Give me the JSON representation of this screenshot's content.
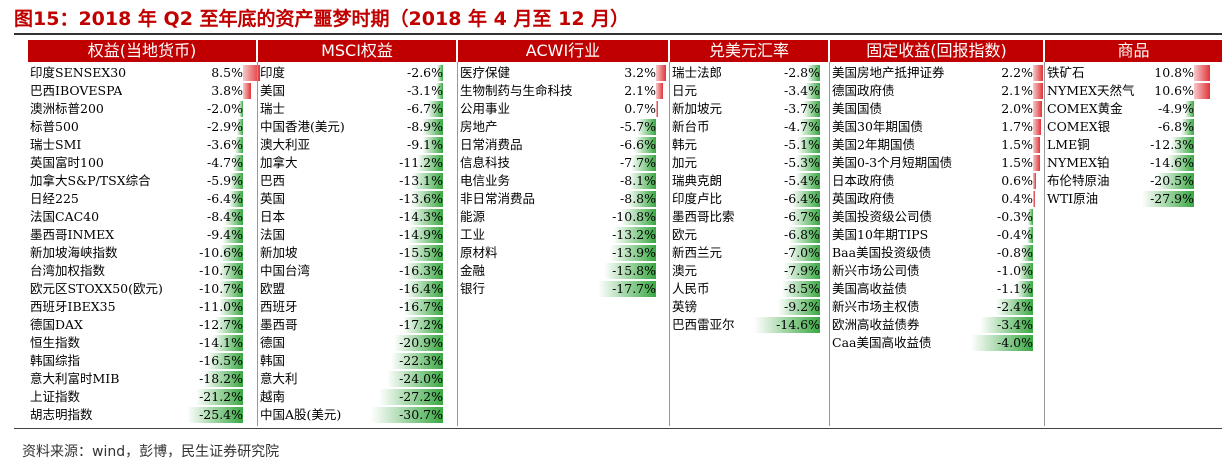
{
  "title": "图15：2018 年 Q2 至年底的资产噩梦时期（2018 年 4 月至 12 月）",
  "source": "资料来源：wind，彭博，民生证券研究院",
  "colors": {
    "header": "#c00000",
    "positive": "#e0353a",
    "negative": "#3aa843",
    "title": "#c00000"
  },
  "chart_data": [
    {
      "type": "bar",
      "title": "权益(当地货币)",
      "unit": "%",
      "categories": [
        "印度SENSEX30",
        "巴西IBOVESPA",
        "澳洲标普200",
        "标普500",
        "瑞士SMI",
        "英国富时100",
        "加拿大S&P/TSX综合",
        "日经225",
        "法国CAC40",
        "墨西哥INMEX",
        "新加坡海峡指数",
        "台湾加权指数",
        "欧元区STOXX50(欧元)",
        "西班牙IBEX35",
        "德国DAX",
        "恒生指数",
        "韩国综指",
        "意大利富时MIB",
        "上证指数",
        "胡志明指数"
      ],
      "values": [
        8.5,
        3.8,
        -2.0,
        -2.9,
        -3.6,
        -4.7,
        -5.9,
        -6.4,
        -8.4,
        -9.4,
        -10.6,
        -10.7,
        -10.7,
        -11.0,
        -12.7,
        -14.1,
        -16.5,
        -18.2,
        -21.2,
        -25.4
      ],
      "labels": [
        "8.5%",
        "3.8%",
        "-2.0%",
        "-2.9%",
        "-3.6%",
        "-4.7%",
        "-5.9%",
        "-6.4%",
        "-8.4%",
        "-9.4%",
        "-10.6%",
        "-10.7%",
        "-10.7%",
        "-11.0%",
        "-12.7%",
        "-14.1%",
        "-16.5%",
        "-18.2%",
        "-21.2%",
        "-25.4%"
      ]
    },
    {
      "type": "bar",
      "title": "MSCI权益",
      "unit": "%",
      "categories": [
        "印度",
        "美国",
        "瑞士",
        "中国香港(美元)",
        "澳大利亚",
        "加拿大",
        "巴西",
        "英国",
        "日本",
        "法国",
        "新加坡",
        "中国台湾",
        "欧盟",
        "西班牙",
        "墨西哥",
        "德国",
        "韩国",
        "意大利",
        "越南",
        "中国A股(美元)"
      ],
      "values": [
        -2.6,
        -3.1,
        -6.7,
        -8.9,
        -9.1,
        -11.2,
        -13.1,
        -13.6,
        -14.3,
        -14.9,
        -15.5,
        -16.3,
        -16.4,
        -16.7,
        -17.2,
        -20.9,
        -22.3,
        -24.0,
        -27.2,
        -30.7
      ],
      "labels": [
        "-2.6%",
        "-3.1%",
        "-6.7%",
        "-8.9%",
        "-9.1%",
        "-11.2%",
        "-13.1%",
        "-13.6%",
        "-14.3%",
        "-14.9%",
        "-15.5%",
        "-16.3%",
        "-16.4%",
        "-16.7%",
        "-17.2%",
        "-20.9%",
        "-22.3%",
        "-24.0%",
        "-27.2%",
        "-30.7%"
      ]
    },
    {
      "type": "bar",
      "title": "ACWI行业",
      "unit": "%",
      "categories": [
        "医疗保健",
        "生物制药与生命科技",
        "公用事业",
        "房地产",
        "日常消费品",
        "信息科技",
        "电信业务",
        "非日常消费品",
        "能源",
        "工业",
        "原材料",
        "金融",
        "银行"
      ],
      "values": [
        3.2,
        2.1,
        0.7,
        -5.7,
        -6.6,
        -7.7,
        -8.1,
        -8.8,
        -10.8,
        -13.2,
        -13.9,
        -15.8,
        -17.7
      ],
      "labels": [
        "3.2%",
        "2.1%",
        "0.7%",
        "-5.7%",
        "-6.6%",
        "-7.7%",
        "-8.1%",
        "-8.8%",
        "-10.8%",
        "-13.2%",
        "-13.9%",
        "-15.8%",
        "-17.7%"
      ]
    },
    {
      "type": "bar",
      "title": "兑美元汇率",
      "unit": "%",
      "categories": [
        "瑞士法郎",
        "日元",
        "新加坡元",
        "新台币",
        "韩元",
        "加元",
        "瑞典克朗",
        "印度卢比",
        "墨西哥比索",
        "欧元",
        "新西兰元",
        "澳元",
        "人民币",
        "英镑",
        "巴西雷亚尔"
      ],
      "values": [
        -2.8,
        -3.4,
        -3.7,
        -4.7,
        -5.1,
        -5.3,
        -5.4,
        -6.4,
        -6.7,
        -6.8,
        -7.0,
        -7.9,
        -8.5,
        -9.2,
        -14.6
      ],
      "labels": [
        "-2.8%",
        "-3.4%",
        "-3.7%",
        "-4.7%",
        "-5.1%",
        "-5.3%",
        "-5.4%",
        "-6.4%",
        "-6.7%",
        "-6.8%",
        "-7.0%",
        "-7.9%",
        "-8.5%",
        "-9.2%",
        "-14.6%"
      ]
    },
    {
      "type": "bar",
      "title": "固定收益(回报指数)",
      "unit": "%",
      "categories": [
        "美国房地产抵押证券",
        "德国政府债",
        "美国国债",
        "美国30年期国债",
        "美国2年期国债",
        "美国0-3个月短期国债",
        "日本政府债",
        "英国政府债",
        "美国投资级公司债",
        "美国10年期TIPS",
        "Baa美国投资级债",
        "新兴市场公司债",
        "美国高收益债",
        "新兴市场主权债",
        "欧洲高收益债券",
        "Caa美国高收益债"
      ],
      "values": [
        2.2,
        2.1,
        2.0,
        1.7,
        1.5,
        1.5,
        0.6,
        0.4,
        -0.3,
        -0.4,
        -0.8,
        -1.0,
        -1.1,
        -2.4,
        -3.4,
        -4.0
      ],
      "labels": [
        "2.2%",
        "2.1%",
        "2.0%",
        "1.7%",
        "1.5%",
        "1.5%",
        "0.6%",
        "0.4%",
        "-0.3%",
        "-0.4%",
        "-0.8%",
        "-1.0%",
        "-1.1%",
        "-2.4%",
        "-3.4%",
        "-4.0%"
      ]
    },
    {
      "type": "bar",
      "title": "商品",
      "unit": "%",
      "categories": [
        "铁矿石",
        "NYMEX天然气",
        "COMEX黄金",
        "COMEX银",
        "LME铜",
        "NYMEX铂",
        "布伦特原油",
        "WTI原油"
      ],
      "values": [
        10.8,
        10.6,
        -4.9,
        -6.8,
        -12.3,
        -14.6,
        -20.5,
        -27.9
      ],
      "labels": [
        "10.8%",
        "10.6%",
        "-4.9%",
        "-6.8%",
        "-12.3%",
        "-14.6%",
        "-20.5%",
        "-27.9%"
      ]
    }
  ]
}
